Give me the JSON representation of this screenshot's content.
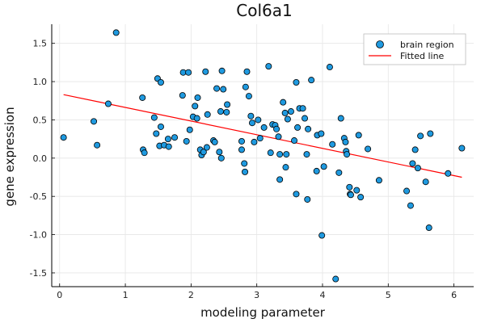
{
  "chart_data": {
    "type": "scatter",
    "title": "Col6a1",
    "xlabel": "modeling parameter",
    "ylabel": "gene expression",
    "xlim": [
      -0.12,
      6.3
    ],
    "ylim": [
      -1.68,
      1.75
    ],
    "xticks": [
      0,
      1,
      2,
      3,
      4,
      5,
      6
    ],
    "xtick_labels": [
      "0",
      "1",
      "2",
      "3",
      "4",
      "5",
      "6"
    ],
    "yticks": [
      -1.5,
      -1.0,
      -0.5,
      0.0,
      0.5,
      1.0,
      1.5
    ],
    "ytick_labels": [
      "-1.5",
      "-1.0",
      "-0.5",
      "0.0",
      "0.5",
      "1.0",
      "1.5"
    ],
    "grid": true,
    "legend_position": "top-right",
    "colors": {
      "points": "#1f9ae0",
      "point_edge": "#000000",
      "line": "#ff0000"
    },
    "series": [
      {
        "name": "brain region",
        "kind": "scatter",
        "points": [
          [
            0.06,
            0.27
          ],
          [
            0.52,
            0.48
          ],
          [
            0.57,
            0.17
          ],
          [
            0.74,
            0.71
          ],
          [
            0.86,
            1.64
          ],
          [
            1.26,
            0.79
          ],
          [
            1.27,
            0.11
          ],
          [
            1.29,
            0.07
          ],
          [
            1.44,
            0.53
          ],
          [
            1.47,
            0.32
          ],
          [
            1.49,
            1.04
          ],
          [
            1.52,
            0.16
          ],
          [
            1.54,
            0.99
          ],
          [
            1.54,
            0.41
          ],
          [
            1.59,
            0.17
          ],
          [
            1.65,
            0.25
          ],
          [
            1.66,
            0.15
          ],
          [
            1.75,
            0.27
          ],
          [
            1.87,
            0.82
          ],
          [
            1.88,
            1.12
          ],
          [
            1.93,
            0.22
          ],
          [
            1.96,
            1.12
          ],
          [
            1.98,
            0.37
          ],
          [
            2.03,
            0.54
          ],
          [
            2.06,
            0.68
          ],
          [
            2.09,
            0.52
          ],
          [
            2.1,
            0.79
          ],
          [
            2.14,
            0.11
          ],
          [
            2.16,
            0.04
          ],
          [
            2.19,
            0.08
          ],
          [
            2.22,
            1.13
          ],
          [
            2.24,
            0.14
          ],
          [
            2.25,
            0.57
          ],
          [
            2.34,
            0.23
          ],
          [
            2.36,
            0.21
          ],
          [
            2.39,
            0.91
          ],
          [
            2.43,
            0.08
          ],
          [
            2.45,
            0.61
          ],
          [
            2.46,
            0.0
          ],
          [
            2.47,
            1.14
          ],
          [
            2.49,
            0.9
          ],
          [
            2.54,
            0.6
          ],
          [
            2.55,
            0.7
          ],
          [
            2.77,
            0.22
          ],
          [
            2.77,
            0.11
          ],
          [
            2.81,
            -0.07
          ],
          [
            2.82,
            -0.18
          ],
          [
            2.83,
            0.93
          ],
          [
            2.85,
            1.13
          ],
          [
            2.88,
            0.81
          ],
          [
            2.91,
            0.55
          ],
          [
            2.93,
            0.46
          ],
          [
            2.96,
            0.21
          ],
          [
            3.02,
            0.5
          ],
          [
            3.05,
            0.26
          ],
          [
            3.11,
            0.4
          ],
          [
            3.18,
            1.2
          ],
          [
            3.21,
            0.07
          ],
          [
            3.24,
            0.44
          ],
          [
            3.28,
            0.43
          ],
          [
            3.3,
            0.38
          ],
          [
            3.33,
            0.28
          ],
          [
            3.35,
            0.05
          ],
          [
            3.35,
            -0.28
          ],
          [
            3.4,
            0.73
          ],
          [
            3.43,
            0.59
          ],
          [
            3.44,
            -0.12
          ],
          [
            3.45,
            0.05
          ],
          [
            3.47,
            0.51
          ],
          [
            3.52,
            0.61
          ],
          [
            3.57,
            0.23
          ],
          [
            3.6,
            -0.47
          ],
          [
            3.6,
            0.99
          ],
          [
            3.62,
            0.4
          ],
          [
            3.65,
            0.65
          ],
          [
            3.7,
            0.65
          ],
          [
            3.73,
            0.52
          ],
          [
            3.76,
            0.05
          ],
          [
            3.77,
            -0.54
          ],
          [
            3.78,
            0.38
          ],
          [
            3.83,
            1.02
          ],
          [
            3.91,
            -0.17
          ],
          [
            3.92,
            0.3
          ],
          [
            3.98,
            0.32
          ],
          [
            3.99,
            -1.01
          ],
          [
            4.02,
            -0.11
          ],
          [
            4.11,
            1.19
          ],
          [
            4.15,
            0.18
          ],
          [
            4.2,
            -1.58
          ],
          [
            4.25,
            -0.19
          ],
          [
            4.28,
            0.52
          ],
          [
            4.33,
            0.26
          ],
          [
            4.35,
            0.21
          ],
          [
            4.36,
            0.09
          ],
          [
            4.37,
            0.05
          ],
          [
            4.41,
            -0.38
          ],
          [
            4.42,
            -0.47
          ],
          [
            4.43,
            -0.48
          ],
          [
            4.52,
            -0.42
          ],
          [
            4.55,
            0.3
          ],
          [
            4.58,
            -0.51
          ],
          [
            4.69,
            0.12
          ],
          [
            4.86,
            -0.29
          ],
          [
            5.28,
            -0.43
          ],
          [
            5.34,
            -0.62
          ],
          [
            5.37,
            -0.07
          ],
          [
            5.41,
            0.11
          ],
          [
            5.45,
            -0.13
          ],
          [
            5.49,
            0.29
          ],
          [
            5.57,
            -0.31
          ],
          [
            5.62,
            -0.91
          ],
          [
            5.64,
            0.32
          ],
          [
            5.91,
            -0.2
          ],
          [
            6.12,
            0.13
          ]
        ]
      },
      {
        "name": "Fitted line",
        "kind": "line",
        "points": [
          [
            0.06,
            0.83
          ],
          [
            6.12,
            -0.25
          ]
        ]
      }
    ]
  }
}
